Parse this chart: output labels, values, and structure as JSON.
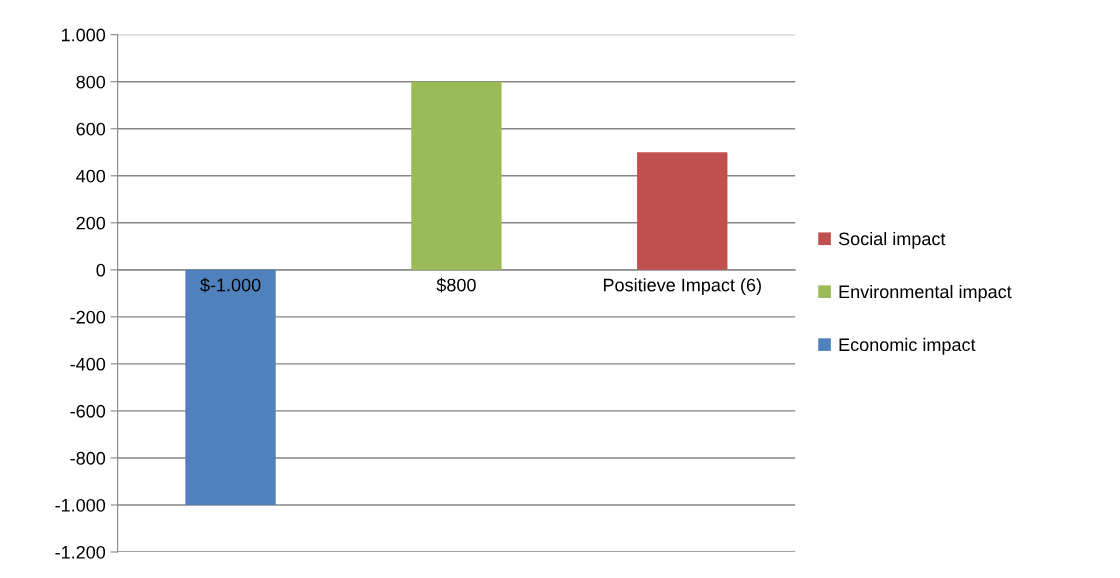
{
  "chart_data": {
    "type": "bar",
    "categories": [
      "$-1.000",
      "$800",
      "Positieve Impact (6)"
    ],
    "series": [
      {
        "name": "Economic impact",
        "color": "#4f81bd",
        "values": [
          -1000,
          null,
          null
        ]
      },
      {
        "name": "Environmental impact",
        "color": "#9bbb59",
        "values": [
          null,
          800,
          null
        ]
      },
      {
        "name": "Social impact",
        "color": "#c0504d",
        "values": [
          null,
          null,
          500
        ]
      }
    ],
    "ylim": [
      -1200,
      1000
    ],
    "yticks": [
      {
        "value": -1200,
        "label": "-1.200"
      },
      {
        "value": -1000,
        "label": "-1.000"
      },
      -800,
      -600,
      -400,
      -200,
      0,
      200,
      400,
      600,
      800,
      {
        "value": 1000,
        "label": "1.000"
      }
    ],
    "grid": "y",
    "legend": "right"
  }
}
